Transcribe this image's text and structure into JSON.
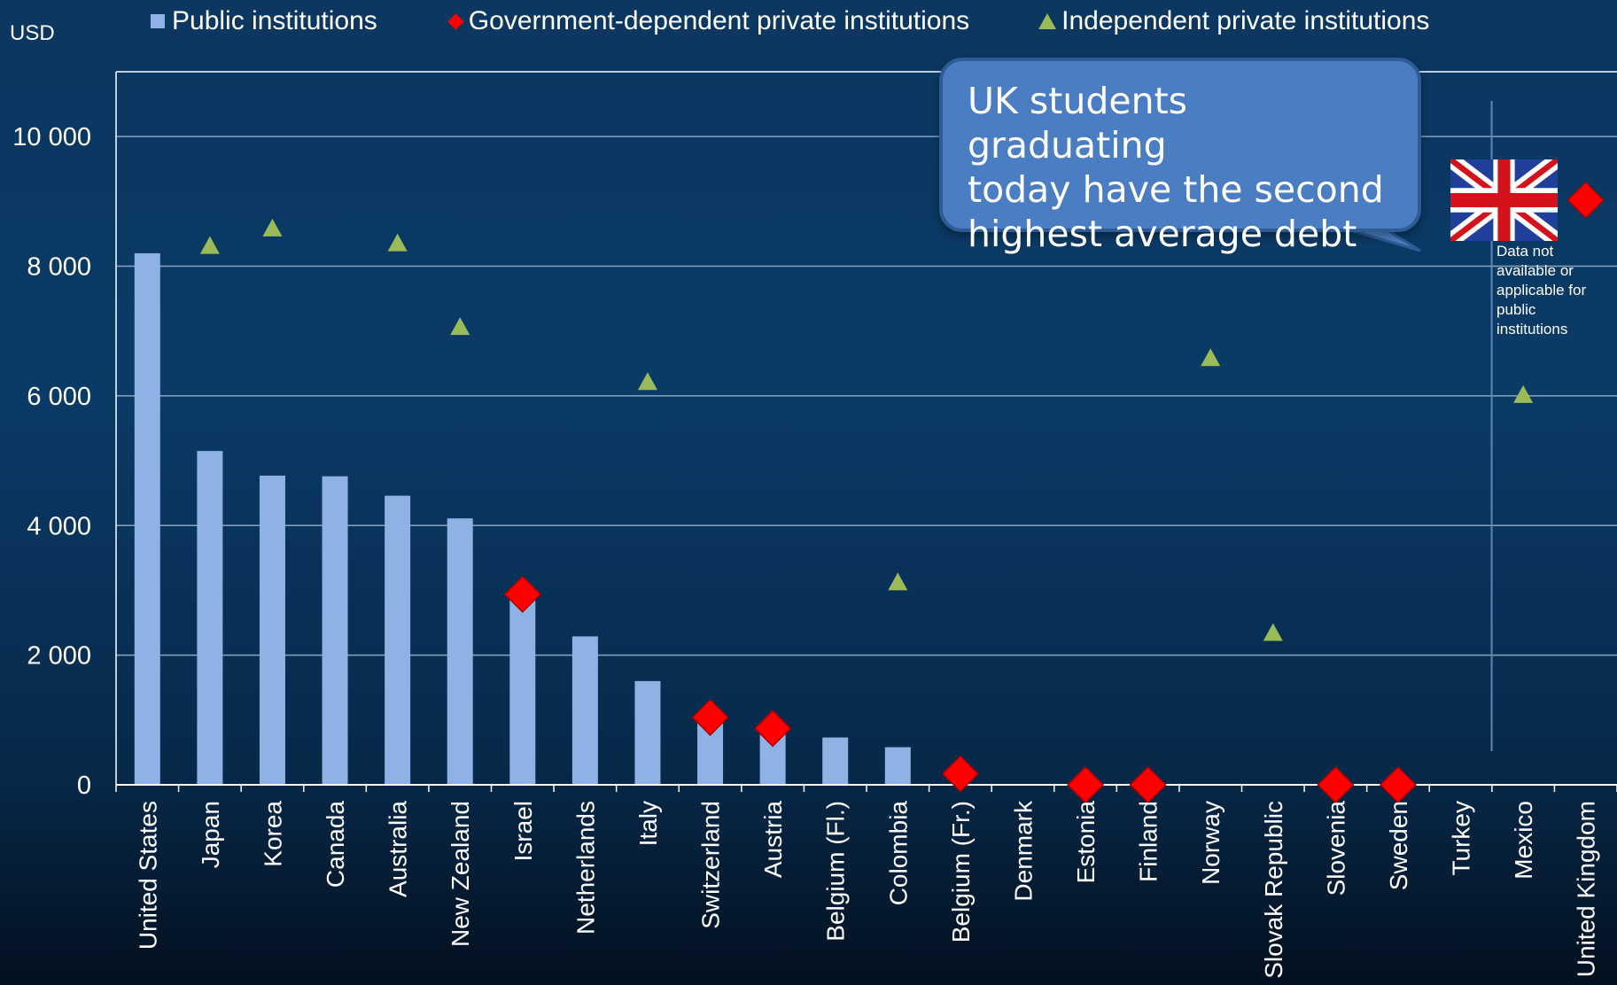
{
  "legend": {
    "public": "Public institutions",
    "gov_dependent": "Government-dependent private institutions",
    "independent": "Independent private institutions"
  },
  "y_unit": "USD",
  "callout": {
    "line1": "UK students graduating",
    "line2": "today have the second",
    "line3": "highest average debt"
  },
  "note": {
    "line1": "Data not",
    "line2": "available or",
    "line3": "applicable for",
    "line4": "public",
    "line5": "institutions"
  },
  "colors": {
    "public": "#8db2e3",
    "gov_dependent": "#ff0000",
    "independent": "#9bbb59",
    "gridline": "#8aa4bf",
    "callout": "#4a7dc1"
  },
  "icons": {
    "flag": "united-kingdom-flag"
  },
  "chart_data": {
    "type": "bar",
    "title": "",
    "xlabel": "",
    "ylabel": "USD",
    "ylim": [
      0,
      11000
    ],
    "yticks": [
      0,
      2000,
      4000,
      6000,
      8000,
      10000
    ],
    "ytick_labels": [
      "0",
      "2 000",
      "4 000",
      "6 000",
      "8 000",
      "10 000"
    ],
    "grid": true,
    "legend_position": "top",
    "categories": [
      "United States",
      "Japan",
      "Korea",
      "Canada",
      "Australia",
      "New Zealand",
      "Israel",
      "Netherlands",
      "Italy",
      "Switzerland",
      "Austria",
      "Belgium (Fl.)",
      "Colombia",
      "Belgium (Fr.)",
      "Denmark",
      "Estonia",
      "Finland",
      "Norway",
      "Slovak Republic",
      "Slovenia",
      "Sweden",
      "Turkey",
      "Mexico",
      "United Kingdom"
    ],
    "series": [
      {
        "name": "Public institutions",
        "type": "bar",
        "values": [
          8200,
          5150,
          4770,
          4760,
          4460,
          4110,
          2920,
          2290,
          1600,
          1030,
          860,
          730,
          580,
          null,
          null,
          null,
          null,
          null,
          null,
          null,
          null,
          null,
          null,
          null
        ]
      },
      {
        "name": "Government-dependent private institutions",
        "type": "diamond",
        "values": [
          null,
          null,
          null,
          null,
          null,
          null,
          2940,
          null,
          null,
          1040,
          870,
          null,
          null,
          170,
          null,
          0,
          0,
          null,
          null,
          0,
          0,
          null,
          null,
          9020
        ]
      },
      {
        "name": "Independent private institutions",
        "type": "triangle",
        "values": [
          null,
          8300,
          8570,
          null,
          8340,
          7050,
          null,
          null,
          6200,
          null,
          null,
          null,
          3110,
          null,
          null,
          null,
          null,
          6570,
          2330,
          null,
          null,
          null,
          6000,
          null
        ]
      }
    ]
  }
}
